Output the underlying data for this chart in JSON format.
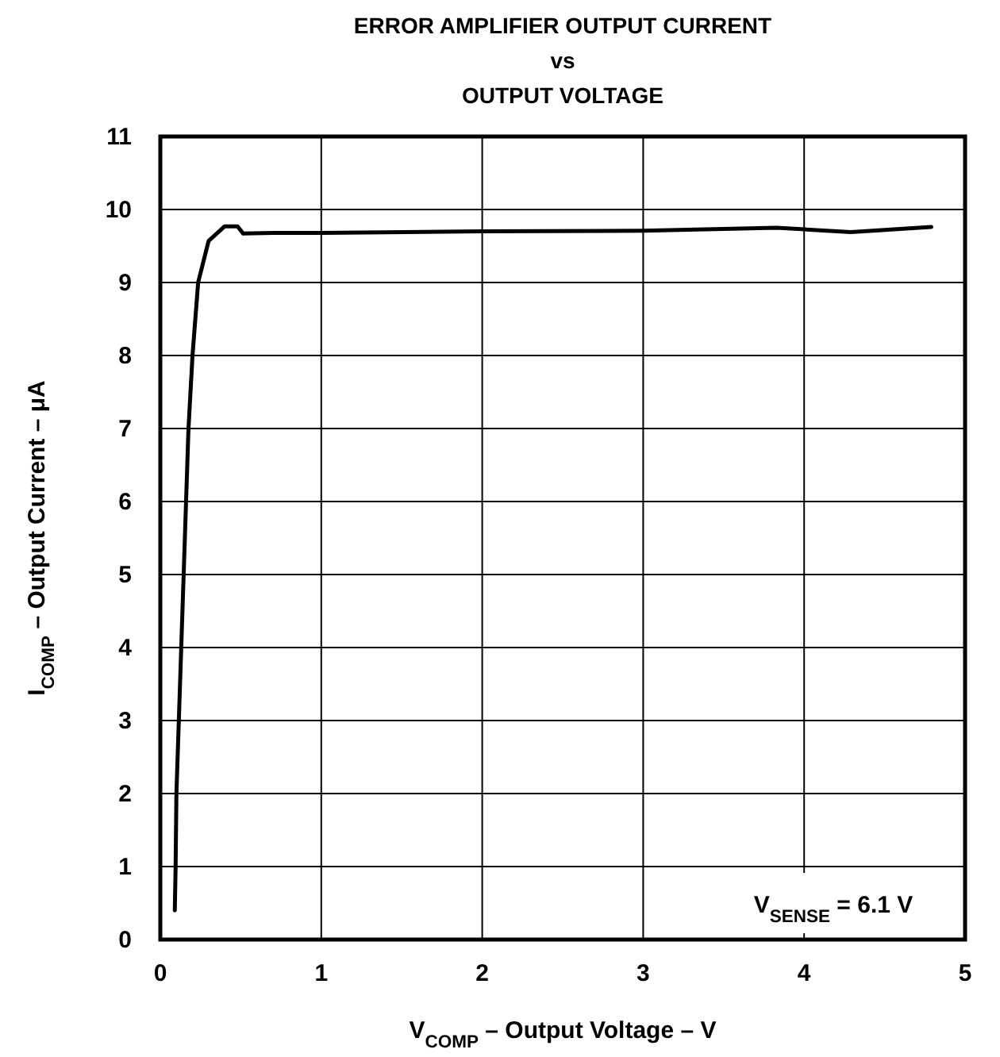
{
  "chart_data": {
    "type": "line",
    "title": "ERROR AMPLIFIER OUTPUT CURRENT\nvs\nOUTPUT VOLTAGE",
    "xlabel": "V$_{COMP}$ – Output Voltage – V",
    "ylabel": "I$_{COMP}$ – Output Current – μA",
    "annotations": [
      "V$_{SENSE}$ = 6.1 V"
    ],
    "series": [
      {
        "color": "#000000",
        "x": [
          0.09,
          0.095,
          0.1,
          0.115,
          0.13,
          0.145,
          0.16,
          0.175,
          0.2,
          0.235,
          0.3,
          0.4,
          0.48,
          0.515,
          0.7,
          1,
          2,
          3,
          3.83,
          4.29,
          4.79
        ],
        "values": [
          0.4,
          1,
          2,
          3,
          4,
          5,
          6,
          7,
          8,
          9,
          9.57,
          9.77,
          9.77,
          9.67,
          9.68,
          9.68,
          9.7,
          9.71,
          9.75,
          9.69,
          9.76
        ]
      }
    ],
    "xlim": [
      0,
      5
    ],
    "xticks": [
      0,
      1,
      2,
      3,
      4,
      5
    ],
    "ylim": [
      0,
      11
    ],
    "yticks": [
      0,
      1,
      2,
      3,
      4,
      5,
      6,
      7,
      8,
      9,
      10,
      11
    ],
    "grid": true,
    "marker": "none",
    "line_style": "solid"
  }
}
